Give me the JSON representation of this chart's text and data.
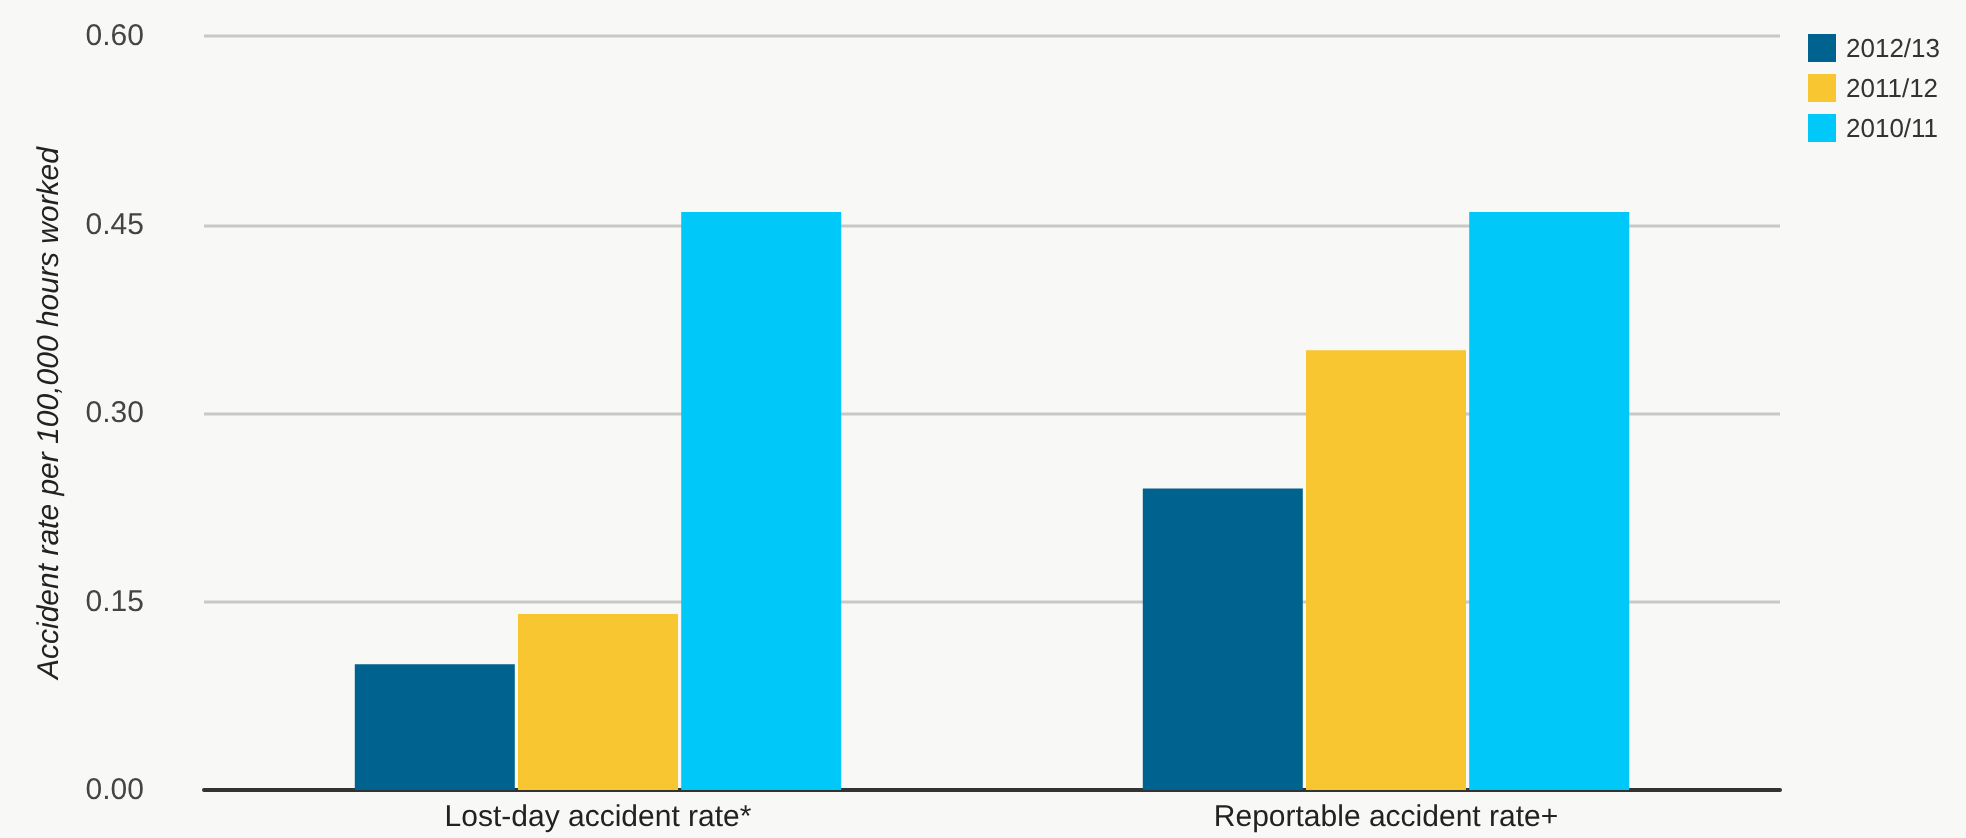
{
  "chart_data": {
    "type": "bar",
    "ylabel": "Accident rate per 100,000 hours worked",
    "categories": [
      "Lost-day accident rate*",
      "Reportable accident rate+"
    ],
    "series": [
      {
        "name": "2012/13",
        "color": "#00628f",
        "values": [
          0.1,
          0.24
        ]
      },
      {
        "name": "2011/12",
        "color": "#f8c630",
        "values": [
          0.14,
          0.35
        ]
      },
      {
        "name": "2010/11",
        "color": "#00c8f8",
        "values": [
          0.46,
          0.46
        ]
      }
    ],
    "ylim": [
      0,
      0.6
    ],
    "yticks": [
      {
        "value": 0,
        "label": "0.00"
      },
      {
        "value": 0.15,
        "label": "0.15"
      },
      {
        "value": 0.3,
        "label": "0.30"
      },
      {
        "value": 0.45,
        "label": "0.45"
      },
      {
        "value": 0.6,
        "label": "0.60"
      }
    ],
    "grid": "y",
    "legend": "top right"
  }
}
